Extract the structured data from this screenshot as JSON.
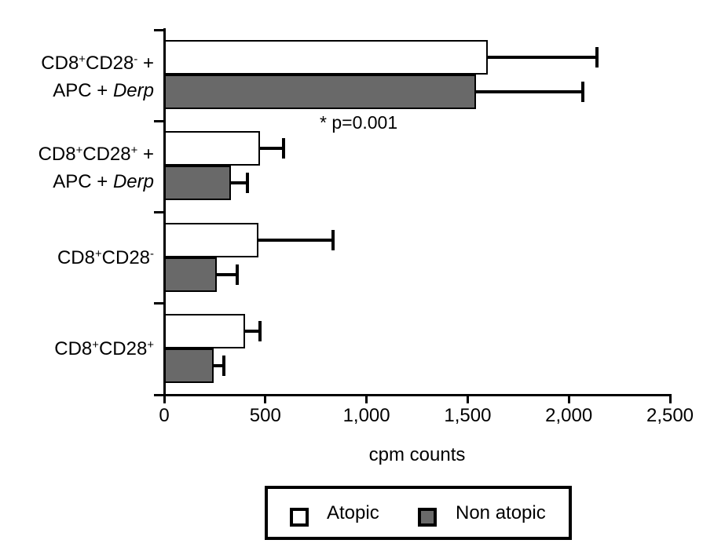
{
  "chart_data": {
    "type": "bar",
    "orientation": "horizontal",
    "title": "",
    "xlabel": "cpm counts",
    "xlim": [
      0,
      2500
    ],
    "x_ticks": [
      0,
      500,
      1000,
      1500,
      2000,
      2500
    ],
    "x_tick_labels": [
      "0",
      "500",
      "1,000",
      "1,500",
      "2,000",
      "2,500"
    ],
    "grid": false,
    "legend_position": "bottom",
    "categories": [
      {
        "name": "CD8+CD28- + APC + Derp",
        "lines": [
          [
            {
              "t": "CD8"
            },
            {
              "t": "+",
              "sup": true
            },
            {
              "t": "CD28"
            },
            {
              "t": "-",
              "sup": true
            },
            {
              "t": " +"
            }
          ],
          [
            {
              "t": "APC + "
            },
            {
              "t": "Derp",
              "italic": true
            }
          ]
        ]
      },
      {
        "name": "CD8+CD28+ + APC + Derp",
        "lines": [
          [
            {
              "t": "CD8"
            },
            {
              "t": "+",
              "sup": true
            },
            {
              "t": "CD28"
            },
            {
              "t": "+",
              "sup": true
            },
            {
              "t": " +"
            }
          ],
          [
            {
              "t": "APC + "
            },
            {
              "t": "Derp",
              "italic": true
            }
          ]
        ]
      },
      {
        "name": "CD8+CD28-",
        "lines": [
          [
            {
              "t": "CD8"
            },
            {
              "t": "+",
              "sup": true
            },
            {
              "t": "CD28"
            },
            {
              "t": "-",
              "sup": true
            }
          ]
        ]
      },
      {
        "name": "CD8+CD28+",
        "lines": [
          [
            {
              "t": "CD8"
            },
            {
              "t": "+",
              "sup": true
            },
            {
              "t": "CD28"
            },
            {
              "t": "+",
              "sup": true
            }
          ]
        ]
      }
    ],
    "series": [
      {
        "name": "Atopic",
        "fill": "#ffffff",
        "values": [
          1600,
          475,
          465,
          400
        ],
        "upper_errors": [
          540,
          115,
          370,
          75
        ]
      },
      {
        "name": "Non atopic",
        "fill": "#696969",
        "values": [
          1540,
          330,
          260,
          245
        ],
        "upper_errors": [
          530,
          80,
          100,
          50
        ]
      }
    ],
    "annotation": {
      "text": "* p=0.001"
    }
  },
  "colors": {
    "background": "#ffffff",
    "axis": "#000000",
    "bar_outline": "#000000",
    "atopic_fill": "#ffffff",
    "non_atopic_fill": "#696969"
  }
}
